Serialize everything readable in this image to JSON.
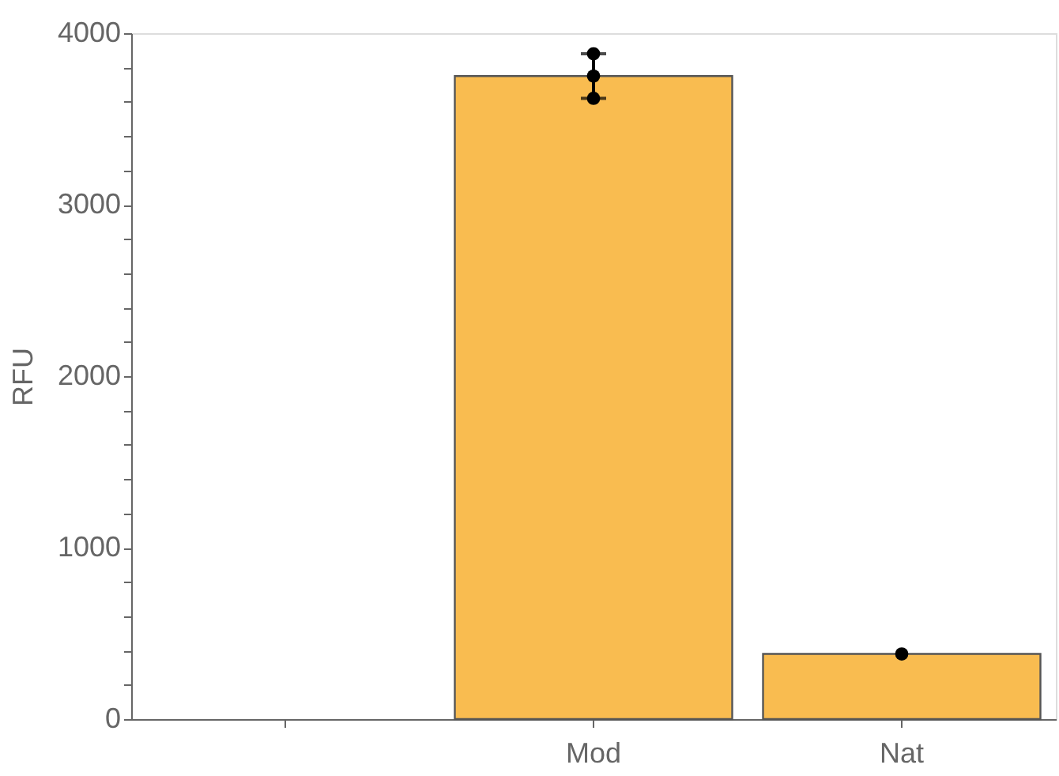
{
  "chart_data": {
    "type": "bar",
    "ylabel": "RFU",
    "categories": [
      null,
      "Mod",
      "Nat"
    ],
    "series": [
      {
        "color": "#f9bc50",
        "values": [
          null,
          3750,
          380
        ],
        "errors": [
          null,
          [
            3620,
            3880
          ],
          null
        ]
      },
      {
        "type": "scatter",
        "color": "#000000",
        "x": [
          "Mod",
          "Mod",
          "Mod",
          "Nat"
        ],
        "values": [
          3880,
          3750,
          3620,
          380
        ]
      }
    ],
    "ylim": [
      0,
      4000
    ],
    "yticks": [
      0,
      {
        "value": 200,
        "label": null
      },
      {
        "value": 400,
        "label": null
      },
      {
        "value": 600,
        "label": null
      },
      {
        "value": 800,
        "label": null
      },
      1000,
      {
        "value": 1200,
        "label": null
      },
      {
        "value": 1400,
        "label": null
      },
      {
        "value": 1600,
        "label": null
      },
      {
        "value": 1800,
        "label": null
      },
      2000,
      {
        "value": 2200,
        "label": null
      },
      {
        "value": 2400,
        "label": null
      },
      {
        "value": 2600,
        "label": null
      },
      {
        "value": 2800,
        "label": null
      },
      3000,
      {
        "value": 3200,
        "label": null
      },
      {
        "value": 3400,
        "label": null
      },
      {
        "value": 3600,
        "label": null
      },
      {
        "value": 3800,
        "label": null
      },
      4000
    ],
    "grid": false,
    "legend": false,
    "marker": "circle"
  }
}
